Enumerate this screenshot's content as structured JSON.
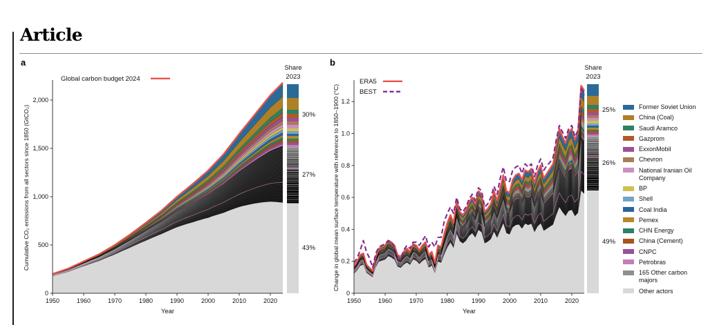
{
  "header": {
    "title": "Article"
  },
  "panel_a": {
    "label": "a",
    "inline_legend": {
      "gcb_label": "Global carbon budget 2024"
    },
    "y_axis": {
      "label": "Cumulative CO₂ emissions from all sectors since 1850 (GtCO₂)",
      "ticks": [
        {
          "v": 0,
          "t": "0"
        },
        {
          "v": 500,
          "t": "500"
        },
        {
          "v": 1000,
          "t": "1,000"
        },
        {
          "v": 1500,
          "t": "1,500"
        },
        {
          "v": 2000,
          "t": "2,000"
        }
      ]
    },
    "x_axis": {
      "label": "Year",
      "ticks": [
        1950,
        1960,
        1970,
        1980,
        1990,
        2000,
        2010,
        2020
      ]
    },
    "share_bar": {
      "title_line1": "Share",
      "title_line2": "2023",
      "sections": [
        {
          "name": "named-carbon-majors",
          "pct": 30,
          "label": "30%"
        },
        {
          "name": "other-carbon-majors",
          "pct": 27,
          "label": "27%"
        },
        {
          "name": "other-actors",
          "pct": 43,
          "label": "43%"
        }
      ]
    }
  },
  "panel_b": {
    "label": "b",
    "inline_legend": {
      "era5_label": "ERA5",
      "best_label": "BEST"
    },
    "y_axis": {
      "label": "Change in global mean surface temperature with reference to 1850–1900 (°C)",
      "ticks": [
        {
          "v": 0,
          "t": "0"
        },
        {
          "v": 0.2,
          "t": "0.2"
        },
        {
          "v": 0.4,
          "t": "0.4"
        },
        {
          "v": 0.6,
          "t": "0.6"
        },
        {
          "v": 0.8,
          "t": "0.8"
        },
        {
          "v": 1.0,
          "t": "1.0"
        },
        {
          "v": 1.2,
          "t": "1.2"
        }
      ]
    },
    "x_axis": {
      "label": "Year",
      "ticks": [
        1950,
        1960,
        1970,
        1980,
        1990,
        2000,
        2010,
        2020
      ]
    },
    "share_bar": {
      "title_line1": "Share",
      "title_line2": "2023",
      "sections": [
        {
          "name": "named-carbon-majors",
          "pct": 25,
          "label": "25%"
        },
        {
          "name": "other-carbon-majors",
          "pct": 26,
          "label": "26%"
        },
        {
          "name": "other-actors",
          "pct": 49,
          "label": "49%"
        }
      ]
    }
  },
  "legend": {
    "items": [
      {
        "label": "Former Soviet Union",
        "color": "#2B6A97",
        "share": 0.22
      },
      {
        "label": "China (Coal)",
        "color": "#AE8027",
        "share": 0.18
      },
      {
        "label": "Saudi Aramco",
        "color": "#2F8263",
        "share": 0.075
      },
      {
        "label": "Gazprom",
        "color": "#B15A27",
        "share": 0.065
      },
      {
        "label": "ExxonMobil",
        "color": "#9E4F97",
        "share": 0.055
      },
      {
        "label": "Chevron",
        "color": "#A87D55",
        "share": 0.055
      },
      {
        "label": "National Iranian Oil Company",
        "color": "#CB8FC2",
        "share": 0.05
      },
      {
        "label": "BP",
        "color": "#CFC050",
        "share": 0.045
      },
      {
        "label": "Shell",
        "color": "#74A4C8",
        "share": 0.04
      },
      {
        "label": "Coal India",
        "color": "#27659B",
        "share": 0.04
      },
      {
        "label": "Pemex",
        "color": "#B8872B",
        "share": 0.038
      },
      {
        "label": "CHN Energy",
        "color": "#2D8166",
        "share": 0.035
      },
      {
        "label": "China (Cement)",
        "color": "#A8541F",
        "share": 0.035
      },
      {
        "label": "CNPC",
        "color": "#98519A",
        "share": 0.033
      },
      {
        "label": "Petrobras",
        "color": "#C27EB6",
        "share": 0.029
      },
      {
        "label": "165 Other carbon majors",
        "color": "#8F8F8F"
      },
      {
        "label": "Other actors",
        "color": "#D8D8D8"
      }
    ]
  },
  "colors": {
    "red_line": "#E8524A",
    "best_line": "#7E2C8E",
    "majors_band": "#161616",
    "other_actors": "#D8D8D8",
    "axis": "#3A3A3A",
    "stripe_pink": "#C77EB6"
  },
  "chart_data": [
    {
      "panel": "a",
      "type": "area",
      "xlabel": "Year",
      "ylabel": "Cumulative CO₂ emissions from all sectors since 1850 (GtCO₂)",
      "x_range": [
        1950,
        2024
      ],
      "ylim": [
        0,
        2250
      ],
      "red_line_label": "Global carbon budget 2024",
      "total_anchors": {
        "years": [
          1950,
          1955,
          1960,
          1965,
          1970,
          1975,
          1980,
          1985,
          1990,
          1995,
          2000,
          2005,
          2010,
          2015,
          2020,
          2024
        ],
        "values": [
          200,
          255,
          330,
          405,
          500,
          610,
          730,
          855,
          1000,
          1130,
          1270,
          1440,
          1650,
          1850,
          2050,
          2180
        ]
      },
      "band_model": {
        "exponent": 1.35,
        "colored": {
          "start": 0.04,
          "end": 0.3
        },
        "majors": {
          "start": 0.08,
          "end": 0.27
        }
      },
      "stack_order_top_to_bottom": [
        "Global carbon budget 2024 (line)",
        "15 named carbon majors",
        "165 Other carbon majors",
        "Other actors"
      ],
      "share_2023_pct": {
        "named_carbon_majors": 30,
        "other_carbon_majors": 27,
        "other_actors": 43
      }
    },
    {
      "panel": "b",
      "type": "area",
      "xlabel": "Year",
      "ylabel": "Change in global mean surface temperature with reference to 1850–1900 (°C)",
      "x_range": [
        1950,
        2024
      ],
      "ylim": [
        0,
        1.4
      ],
      "series": [
        {
          "name": "ERA5",
          "values": [
            0.17,
            0.2,
            0.24,
            0.25,
            0.18,
            0.16,
            0.14,
            0.23,
            0.28,
            0.29,
            0.3,
            0.33,
            0.32,
            0.3,
            0.24,
            0.23,
            0.26,
            0.28,
            0.26,
            0.31,
            0.3,
            0.27,
            0.3,
            0.32,
            0.24,
            0.26,
            0.19,
            0.3,
            0.29,
            0.37,
            0.44,
            0.49,
            0.44,
            0.58,
            0.51,
            0.49,
            0.52,
            0.57,
            0.6,
            0.56,
            0.64,
            0.62,
            0.51,
            0.53,
            0.56,
            0.64,
            0.58,
            0.66,
            0.74,
            0.64,
            0.63,
            0.71,
            0.74,
            0.75,
            0.71,
            0.77,
            0.76,
            0.78,
            0.69,
            0.76,
            0.8,
            0.72,
            0.75,
            0.78,
            0.81,
            0.93,
            1.03,
            0.98,
            0.94,
            1.01,
            1.03,
            0.96,
            1.01,
            1.3,
            1.27
          ]
        },
        {
          "name": "BEST",
          "values": [
            0.19,
            0.22,
            0.27,
            0.33,
            0.26,
            0.22,
            0.16,
            0.25,
            0.29,
            0.3,
            0.31,
            0.33,
            0.32,
            0.29,
            0.22,
            0.21,
            0.27,
            0.3,
            0.28,
            0.32,
            0.32,
            0.3,
            0.33,
            0.36,
            0.29,
            0.32,
            0.29,
            0.35,
            0.35,
            0.45,
            0.5,
            0.54,
            0.5,
            0.6,
            0.53,
            0.51,
            0.54,
            0.59,
            0.62,
            0.58,
            0.66,
            0.64,
            0.54,
            0.56,
            0.6,
            0.67,
            0.62,
            0.72,
            0.79,
            0.7,
            0.7,
            0.77,
            0.79,
            0.8,
            0.75,
            0.81,
            0.79,
            0.81,
            0.73,
            0.8,
            0.84,
            0.77,
            0.8,
            0.82,
            0.85,
            0.96,
            1.05,
            1.01,
            0.97,
            1.03,
            1.05,
            0.98,
            1.02,
            1.28,
            1.24
          ]
        }
      ],
      "band_model": {
        "exponent": 1.35,
        "colored": {
          "start": 0.14,
          "end": 0.25
        },
        "majors": {
          "start": 0.14,
          "end": 0.26
        }
      },
      "share_2023_pct": {
        "named_carbon_majors": 25,
        "other_carbon_majors": 26,
        "other_actors": 49
      }
    }
  ]
}
